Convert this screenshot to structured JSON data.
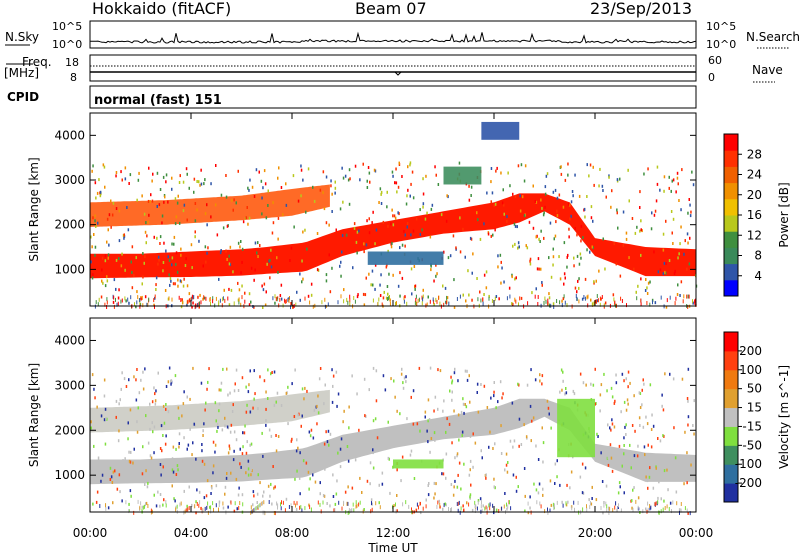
{
  "header": {
    "station": "Hokkaido (fitACF)",
    "beam": "Beam 07",
    "date": "23/Sep/2013"
  },
  "strips": {
    "nsky_label": "N.Sky",
    "nsearch_label": "N.Search",
    "nsky_ticks": [
      "10^5",
      "10^0"
    ],
    "nsearch_ticks": [
      "10^5",
      "10^0"
    ],
    "freq_label": "Freq.",
    "freq_unit": "[MHz]",
    "freq_ticks": [
      "18",
      "8"
    ],
    "nave_label": "Nave",
    "nave_ticks": [
      "60",
      "0"
    ],
    "cpid_label": "CPID",
    "cpid_value": "normal (fast) 151"
  },
  "power_colorbar": {
    "label": "Power [dB]",
    "ticks": [
      "28",
      "24",
      "20",
      "16",
      "12",
      "8",
      "4"
    ],
    "colors": [
      "#0000ff",
      "#2f55a8",
      "#3a8a5a",
      "#3f8f3f",
      "#b8c81c",
      "#f0c000",
      "#f09000",
      "#f06000",
      "#ff3000",
      "#ff0000"
    ]
  },
  "velocity_colorbar": {
    "label": "Velocity [m s^-1]",
    "ticks": [
      "200",
      "100",
      "50",
      "15",
      "-15",
      "-50",
      "-100",
      "-200"
    ],
    "colors": [
      "#2030a0",
      "#2f6f9f",
      "#3f8f5f",
      "#7fdf3f",
      "#c0c0c0",
      "#e0a030",
      "#f07a10",
      "#ff4010",
      "#ff0000"
    ]
  },
  "chart_data": [
    {
      "type": "heatmap",
      "name": "power",
      "xlabel": "Time UT",
      "ylabel": "Slant Range [km]",
      "x_ticks": [
        "00:00",
        "04:00",
        "08:00",
        "12:00",
        "16:00",
        "20:00",
        "00:00"
      ],
      "y_ticks": [
        "1000",
        "2000",
        "3000",
        "4000"
      ],
      "xlim_hours": [
        0,
        24
      ],
      "ylim_km": [
        180,
        4500
      ],
      "bands": [
        {
          "desc": "main echo",
          "t": [
            0,
            2,
            4,
            6,
            7,
            8.5,
            10,
            12,
            14,
            16,
            17,
            18,
            19,
            20,
            22,
            24
          ],
          "lo": [
            800,
            820,
            830,
            860,
            900,
            950,
            1300,
            1600,
            1800,
            1900,
            2050,
            2300,
            2000,
            1300,
            850,
            850
          ],
          "hi": [
            1350,
            1350,
            1400,
            1450,
            1500,
            1600,
            1900,
            2100,
            2300,
            2500,
            2700,
            2700,
            2500,
            1700,
            1500,
            1450
          ],
          "color": "#ff1a00"
        },
        {
          "desc": "upper layer",
          "t": [
            0,
            3,
            6,
            8,
            9.5
          ],
          "lo": [
            1950,
            2000,
            2100,
            2200,
            2400
          ],
          "hi": [
            2500,
            2550,
            2650,
            2800,
            2900
          ],
          "color": "#ff5000"
        }
      ],
      "patches": [
        {
          "t": [
            11,
            14
          ],
          "range": [
            1100,
            1400
          ],
          "color": "#2f6fa0"
        },
        {
          "t": [
            14,
            15.5
          ],
          "range": [
            2900,
            3300
          ],
          "color": "#3f8f5f"
        },
        {
          "t": [
            15.5,
            17
          ],
          "range": [
            3900,
            4300
          ],
          "color": "#2f55a8"
        }
      ]
    },
    {
      "type": "heatmap",
      "name": "velocity",
      "xlabel": "Time UT",
      "ylabel": "Slant Range [km]",
      "x_ticks": [
        "00:00",
        "04:00",
        "08:00",
        "12:00",
        "16:00",
        "20:00",
        "00:00"
      ],
      "y_ticks": [
        "1000",
        "2000",
        "3000",
        "4000"
      ],
      "xlim_hours": [
        0,
        24
      ],
      "ylim_km": [
        180,
        4500
      ],
      "bands": [
        {
          "desc": "main echo",
          "t": [
            0,
            2,
            4,
            6,
            7,
            8.5,
            10,
            12,
            14,
            16,
            17,
            18,
            19,
            20,
            22,
            24
          ],
          "lo": [
            800,
            820,
            830,
            860,
            900,
            950,
            1300,
            1600,
            1800,
            1900,
            2050,
            2300,
            2000,
            1300,
            850,
            850
          ],
          "hi": [
            1350,
            1350,
            1400,
            1450,
            1500,
            1600,
            1900,
            2100,
            2300,
            2500,
            2700,
            2700,
            2500,
            1700,
            1500,
            1450
          ],
          "color": "#c0c0c0"
        },
        {
          "desc": "upper layer",
          "t": [
            0,
            3,
            6,
            8,
            9.5
          ],
          "lo": [
            1950,
            2000,
            2100,
            2200,
            2400
          ],
          "hi": [
            2500,
            2550,
            2650,
            2800,
            2900
          ],
          "color": "#c8c8c0"
        }
      ],
      "patches": [
        {
          "t": [
            18.5,
            20
          ],
          "range": [
            1400,
            2700
          ],
          "color": "#7fdf3f"
        },
        {
          "t": [
            12,
            14
          ],
          "range": [
            1150,
            1350
          ],
          "color": "#7fdf3f"
        }
      ]
    }
  ]
}
